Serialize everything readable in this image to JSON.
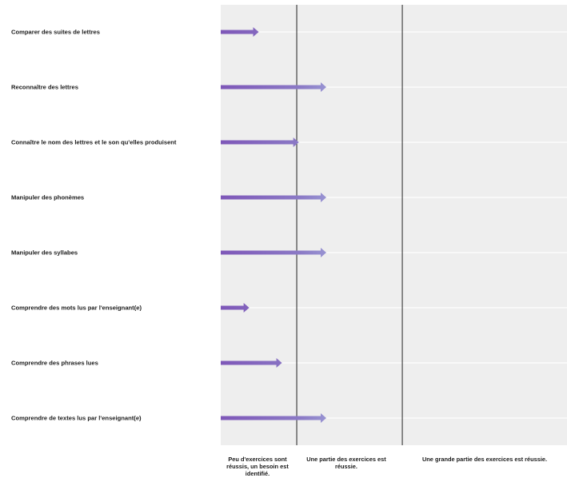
{
  "chart_data": {
    "type": "bar",
    "orientation": "horizontal",
    "categories": [
      "Comparer des suites de lettres",
      "Reconnaître des lettres",
      "Connaître le nom des lettres et le son qu'elles produisent",
      "Manipuler des phonèmes",
      "Manipuler des syllabes",
      "Comprendre des mots lus par l'enseignant(e)",
      "Comprendre des phrases lues",
      "Comprendre de textes lus par l'enseignant(e)"
    ],
    "values": [
      0.36,
      1.0,
      0.74,
      1.0,
      1.0,
      0.27,
      0.58,
      1.0
    ],
    "bands": [
      {
        "label": "Peu d'exercices sont réussis, un besoin est identifié.",
        "start": 0,
        "end": 0.72
      },
      {
        "label": "Une partie des exercices est réussie.",
        "start": 0.72,
        "end": 1.72
      },
      {
        "label": "Une grande partie des exercices est réussie.",
        "start": 1.72,
        "end": 3.28
      }
    ],
    "xlim": [
      0,
      3.28
    ],
    "bar_colors": {
      "low": "#7e57b8",
      "mid": "#a3a9dc",
      "high": "#8fd98f"
    },
    "band_background": "#eeeeee",
    "divider_color": "#222222"
  }
}
